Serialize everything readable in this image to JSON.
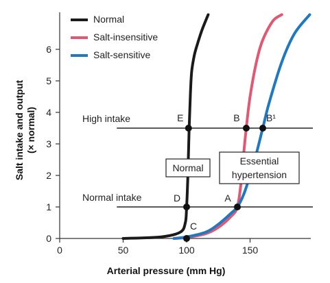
{
  "chart_data": {
    "type": "line",
    "xlabel": "Arterial pressure (mm Hg)",
    "ylabel": "Salt intake and output",
    "ylabel2": "(× normal)",
    "xlim": [
      0,
      200
    ],
    "ylim": [
      0,
      7
    ],
    "x_ticks": [
      0,
      50,
      100,
      150
    ],
    "y_ticks": [
      0,
      1,
      2,
      3,
      4,
      5,
      6
    ],
    "grid": false,
    "legend_position": "top-left",
    "series": [
      {
        "name": "Normal",
        "color": "#1a1a1a",
        "x": [
          50,
          80,
          95,
          99,
          100,
          101,
          102,
          103,
          104,
          106,
          108,
          112,
          117
        ],
        "y": [
          0,
          0.05,
          0.2,
          0.5,
          1.0,
          2.0,
          3.5,
          4.6,
          5.3,
          5.8,
          6.1,
          6.6,
          7.1
        ]
      },
      {
        "name": "Salt-insensitive",
        "color": "#e05872",
        "x": [
          90,
          100,
          115,
          125,
          135,
          140,
          143,
          145,
          147,
          150,
          155,
          160,
          168,
          175
        ],
        "y": [
          0,
          0.03,
          0.15,
          0.35,
          0.7,
          1.0,
          1.8,
          2.7,
          3.5,
          4.5,
          5.6,
          6.3,
          6.9,
          7.1
        ]
      },
      {
        "name": "Salt-sensitive",
        "color": "#1f78c0",
        "x": [
          90,
          100,
          115,
          125,
          135,
          140,
          145,
          150,
          155,
          160,
          165,
          175,
          185,
          197
        ],
        "y": [
          0,
          0.05,
          0.2,
          0.45,
          0.8,
          1.0,
          1.4,
          2.0,
          2.7,
          3.5,
          4.3,
          5.6,
          6.5,
          7.1
        ]
      }
    ],
    "reference_lines": [
      {
        "label": "High intake",
        "y": 3.5,
        "x_range": [
          45,
          200
        ]
      },
      {
        "label": "Normal intake",
        "y": 1.0,
        "x_range": [
          45,
          200
        ]
      }
    ],
    "points": [
      {
        "label": "E",
        "x": 101.5,
        "y": 3.5
      },
      {
        "label": "B",
        "x": 147,
        "y": 3.5
      },
      {
        "label": "B¹",
        "x": 160,
        "y": 3.5
      },
      {
        "label": "D",
        "x": 100,
        "y": 1.0
      },
      {
        "label": "A",
        "x": 140,
        "y": 1.0
      },
      {
        "label": "C",
        "x": 100,
        "y": 0.0
      }
    ],
    "annotations": [
      {
        "lines": [
          "Normal"
        ]
      },
      {
        "lines": [
          "Essential",
          "hypertension"
        ]
      }
    ]
  }
}
